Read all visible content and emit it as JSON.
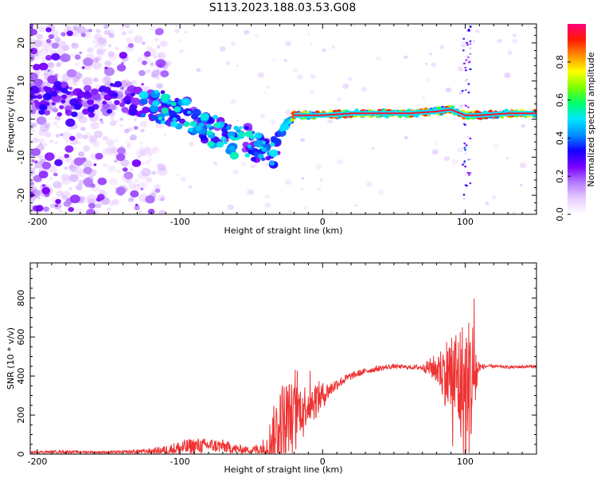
{
  "title": "S113.2023.188.03.53.G08",
  "chart_data": [
    {
      "type": "heatmap",
      "xlabel": "Height of straight line (km)",
      "ylabel": "Frequency (Hz)",
      "xlim": [
        -205,
        150
      ],
      "ylim": [
        -25,
        25
      ],
      "xticks": [
        -200,
        -100,
        0,
        100
      ],
      "yticks": [
        -20,
        -10,
        0,
        10,
        20
      ],
      "grid": false,
      "colorbar": {
        "label": "Normalized spectral amplitude",
        "range": [
          0.0,
          1.0
        ],
        "ticks": [
          0.0,
          0.2,
          0.4,
          0.6,
          0.8
        ],
        "tick_labels": [
          "0.0",
          "0.2",
          "0.4",
          "0.6",
          "0.8"
        ],
        "colors": [
          "#ffffff",
          "#e9ccff",
          "#b57cff",
          "#7a00ff",
          "#1400ff",
          "#0090ff",
          "#00e5ff",
          "#00ff6a",
          "#7dff00",
          "#ffff00",
          "#ff9000",
          "#ff1a00",
          "#ff0077"
        ]
      },
      "ridge": {
        "x": [
          -200,
          -180,
          -160,
          -140,
          -130,
          -120,
          -110,
          -100,
          -90,
          -80,
          -70,
          -60,
          -50,
          -45,
          -40,
          -35,
          -30,
          -25,
          -20,
          -10,
          0,
          20,
          40,
          60,
          80,
          90,
          100,
          110,
          130,
          150
        ],
        "y": [
          6,
          5,
          4,
          6,
          5,
          4,
          3,
          2,
          0,
          -3,
          -4,
          -6,
          -6,
          -8,
          -9,
          -10,
          -4,
          -1,
          1,
          1,
          1,
          1.5,
          1.5,
          1.5,
          2,
          2.5,
          1,
          1,
          1.5,
          1.5
        ]
      }
    },
    {
      "type": "line",
      "xlabel": "Height of straight line (km)",
      "ylabel": "SNR (10 * v/v)",
      "xlim": [
        -205,
        150
      ],
      "ylim": [
        0,
        980
      ],
      "xticks": [
        -200,
        -100,
        0,
        100
      ],
      "yticks": [
        0,
        200,
        400,
        600,
        800
      ],
      "color": "#ee3333",
      "grid": false,
      "envelope": {
        "x": [
          -205,
          -180,
          -160,
          -140,
          -120,
          -110,
          -100,
          -90,
          -80,
          -70,
          -60,
          -50,
          -40,
          -35,
          -30,
          -25,
          -20,
          -15,
          -10,
          -5,
          0,
          5,
          10,
          15,
          20,
          30,
          40,
          50,
          60,
          70,
          80,
          85,
          90,
          95,
          100,
          105,
          110,
          115,
          120,
          130,
          150
        ],
        "base": [
          10,
          12,
          10,
          10,
          15,
          20,
          30,
          40,
          45,
          40,
          25,
          20,
          30,
          80,
          150,
          190,
          210,
          240,
          260,
          280,
          300,
          330,
          360,
          380,
          400,
          425,
          440,
          450,
          445,
          445,
          440,
          420,
          400,
          380,
          300,
          380,
          445,
          450,
          450,
          445,
          450
        ],
        "amp": [
          5,
          8,
          5,
          8,
          15,
          25,
          40,
          45,
          35,
          35,
          25,
          15,
          60,
          150,
          220,
          200,
          150,
          120,
          110,
          100,
          70,
          40,
          30,
          25,
          20,
          15,
          15,
          12,
          10,
          15,
          80,
          150,
          250,
          300,
          400,
          350,
          20,
          10,
          8,
          8,
          8
        ]
      }
    }
  ]
}
